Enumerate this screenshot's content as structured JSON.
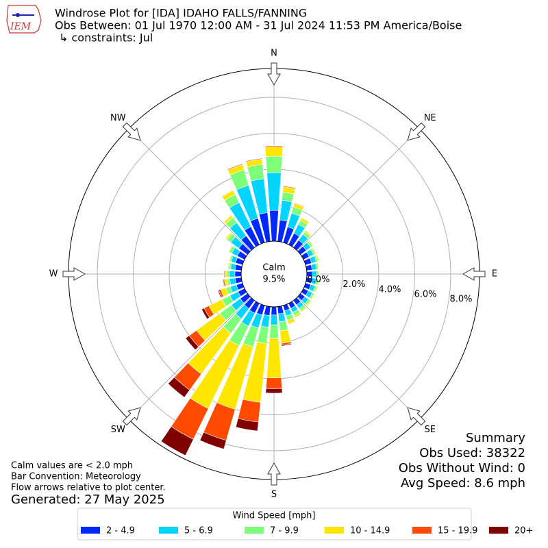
{
  "chart_data": {
    "type": "windrose",
    "title": "Windrose Plot for [IDA] IDAHO FALLS/FANNING",
    "subtitle": "Obs Between: 01 Jul 1970 12:00 AM - 31 Jul 2024 11:53 PM America/Boise",
    "constraints": "↳ constraints: Jul",
    "logo_text": "IEM",
    "directions": [
      0,
      10,
      20,
      30,
      40,
      50,
      60,
      70,
      80,
      90,
      100,
      110,
      120,
      130,
      140,
      150,
      160,
      170,
      180,
      190,
      200,
      210,
      220,
      230,
      240,
      250,
      260,
      270,
      280,
      290,
      300,
      310,
      320,
      330,
      340,
      350
    ],
    "series": [
      {
        "name": "2 - 4.9",
        "color": "#0028ff",
        "values": [
          1.71,
          1.2,
          0.9,
          0.7,
          0.5,
          0.4,
          0.35,
          0.35,
          0.3,
          0.3,
          0.3,
          0.3,
          0.3,
          0.3,
          0.3,
          0.3,
          0.3,
          0.4,
          0.45,
          0.5,
          0.55,
          0.6,
          0.55,
          0.5,
          0.4,
          0.35,
          0.35,
          0.35,
          0.35,
          0.4,
          0.45,
          0.6,
          0.8,
          1.1,
          1.4,
          1.6
        ]
      },
      {
        "name": "5 - 6.9",
        "color": "#00d4ff",
        "values": [
          2.1,
          1.1,
          0.8,
          0.55,
          0.4,
          0.3,
          0.27,
          0.27,
          0.25,
          0.25,
          0.25,
          0.25,
          0.25,
          0.25,
          0.25,
          0.25,
          0.3,
          0.45,
          0.55,
          0.65,
          0.75,
          0.8,
          0.7,
          0.6,
          0.5,
          0.35,
          0.3,
          0.3,
          0.25,
          0.25,
          0.35,
          0.55,
          0.9,
          1.5,
          1.9,
          1.9
        ]
      },
      {
        "name": "7 - 9.9",
        "color": "#7dff7a",
        "values": [
          0.91,
          0.45,
          0.35,
          0.25,
          0.17,
          0.12,
          0.1,
          0.1,
          0.1,
          0.1,
          0.1,
          0.1,
          0.1,
          0.12,
          0.15,
          0.2,
          0.25,
          0.5,
          0.75,
          0.9,
          1.1,
          1.2,
          1.0,
          0.8,
          0.5,
          0.25,
          0.15,
          0.15,
          0.1,
          0.1,
          0.15,
          0.25,
          0.35,
          0.5,
          0.9,
          0.8
        ]
      },
      {
        "name": "10 - 14.9",
        "color": "#ffe600",
        "values": [
          0.54,
          0.3,
          0.2,
          0.15,
          0.1,
          0.06,
          0.06,
          0.06,
          0.05,
          0.05,
          0.05,
          0.05,
          0.05,
          0.07,
          0.08,
          0.12,
          0.2,
          0.7,
          2.2,
          3.3,
          3.6,
          3.9,
          2.8,
          1.6,
          0.8,
          0.3,
          0.15,
          0.1,
          0.06,
          0.04,
          0.05,
          0.1,
          0.15,
          0.25,
          0.3,
          0.3
        ]
      },
      {
        "name": "15 - 19.9",
        "color": "#ff4a00",
        "values": [
          0.05,
          0.05,
          0.04,
          0.03,
          0.02,
          0.01,
          0.01,
          0.01,
          0.01,
          0.01,
          0.01,
          0.01,
          0.01,
          0.01,
          0.01,
          0.02,
          0.03,
          0.1,
          0.6,
          1.1,
          1.8,
          1.9,
          1.1,
          0.5,
          0.3,
          0.12,
          0.07,
          0.05,
          0.02,
          0.01,
          0.01,
          0.02,
          0.02,
          0.03,
          0.05,
          0.05
        ]
      },
      {
        "name": "20+",
        "color": "#7f0000",
        "values": [
          0.02,
          0.02,
          0.01,
          0.01,
          0.01,
          0,
          0,
          0,
          0,
          0,
          0,
          0,
          0,
          0,
          0,
          0,
          0.01,
          0.05,
          0.25,
          0.5,
          0.5,
          1.0,
          0.5,
          0.25,
          0.15,
          0.05,
          0.03,
          0.02,
          0,
          0,
          0,
          0,
          0,
          0.01,
          0.01,
          0.01
        ]
      }
    ],
    "rlim": [
      0,
      9.6
    ],
    "rticks": [
      {
        "value": 0,
        "label": "0.0%"
      },
      {
        "value": 2,
        "label": "2.0%"
      },
      {
        "value": 4,
        "label": "4.0%"
      },
      {
        "value": 6,
        "label": "6.0%"
      },
      {
        "value": 8,
        "label": "8.0%"
      }
    ],
    "theta_ticks": [
      {
        "value": 0,
        "label": "N"
      },
      {
        "value": 45,
        "label": "NE"
      },
      {
        "value": 90,
        "label": "E"
      },
      {
        "value": 135,
        "label": "SE"
      },
      {
        "value": 180,
        "label": "S"
      },
      {
        "value": 225,
        "label": "SW"
      },
      {
        "value": 270,
        "label": "W"
      },
      {
        "value": 315,
        "label": "NW"
      }
    ],
    "grid": true,
    "calm_label": "Calm",
    "calm": 9.5,
    "calm_value_label": "9.5%",
    "legend_title": "Wind Speed [mph]",
    "legend_position": "bottom",
    "notes": [
      "Calm values are < 2.0 mph",
      "Bar Convention: Meteorology",
      "Flow arrows relative to plot center."
    ],
    "generated": "Generated: 27 May 2025",
    "summary": [
      "Summary",
      "Obs Used: 38322",
      "Obs Without Wind: 0",
      "Avg Speed: 8.6 mph"
    ]
  }
}
